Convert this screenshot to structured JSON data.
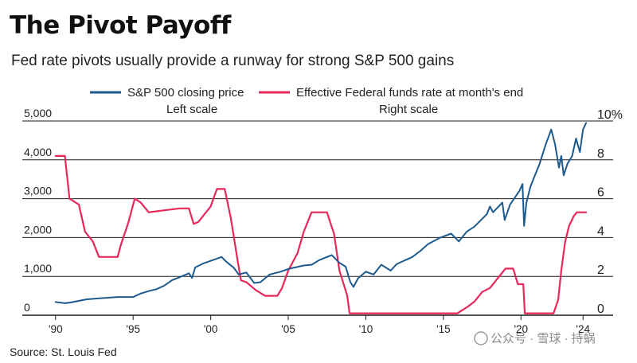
{
  "header": {
    "title": "The Pivot Payoff",
    "subtitle": "Fed rate pivots usually provide a runway for strong S&P 500 gains"
  },
  "footer": {
    "source": "Source: St. Louis Fed",
    "watermark": "公众号 · 雪球 · 持蜗"
  },
  "colors": {
    "sp500": "#1c5a8e",
    "fed_funds": "#e8275a",
    "gridline": "#1a1a1a",
    "text": "#222222"
  },
  "chart_data": {
    "type": "line",
    "title": "The Pivot Payoff",
    "subtitle": "Fed rate pivots usually provide a runway for strong S&P 500 gains",
    "x_range": [
      1989.6,
      2024.4
    ],
    "x_ticks": [
      1990,
      1995,
      2000,
      2005,
      2010,
      2015,
      2020,
      2024
    ],
    "x_tick_labels": [
      "'90",
      "'95",
      "'00",
      "'05",
      "'10",
      "'15",
      "'20",
      "'24"
    ],
    "y_left": {
      "label": "Left scale",
      "range": [
        0,
        5000
      ],
      "ticks": [
        0,
        1000,
        2000,
        3000,
        4000,
        5000
      ],
      "tick_labels": [
        "0",
        "1,000",
        "2,000",
        "3,000",
        "4,000",
        "5,000"
      ]
    },
    "y_right": {
      "label": "Right scale",
      "range": [
        0,
        10
      ],
      "ticks": [
        0,
        2,
        4,
        6,
        8,
        10
      ],
      "tick_labels": [
        "0",
        "2",
        "4",
        "6",
        "8",
        "10%"
      ]
    },
    "grid": "horizontal",
    "legend_position": "top-center",
    "series": [
      {
        "name": "S&P 500 closing price",
        "axis": "left",
        "color": "#1c5a8e",
        "points": [
          [
            1990.0,
            340
          ],
          [
            1990.6,
            310
          ],
          [
            1991.0,
            330
          ],
          [
            1992.0,
            410
          ],
          [
            1993.0,
            440
          ],
          [
            1994.0,
            470
          ],
          [
            1995.0,
            470
          ],
          [
            1995.5,
            560
          ],
          [
            1996.0,
            620
          ],
          [
            1996.5,
            670
          ],
          [
            1997.0,
            760
          ],
          [
            1997.5,
            900
          ],
          [
            1998.0,
            980
          ],
          [
            1998.6,
            1080
          ],
          [
            1998.8,
            960
          ],
          [
            1999.0,
            1230
          ],
          [
            1999.5,
            1330
          ],
          [
            2000.0,
            1400
          ],
          [
            2000.7,
            1500
          ],
          [
            2001.0,
            1380
          ],
          [
            2001.5,
            1220
          ],
          [
            2001.8,
            1050
          ],
          [
            2002.3,
            1100
          ],
          [
            2002.8,
            830
          ],
          [
            2003.2,
            850
          ],
          [
            2003.8,
            1050
          ],
          [
            2004.5,
            1120
          ],
          [
            2005.0,
            1190
          ],
          [
            2006.0,
            1280
          ],
          [
            2006.5,
            1300
          ],
          [
            2007.0,
            1420
          ],
          [
            2007.8,
            1550
          ],
          [
            2008.3,
            1350
          ],
          [
            2008.7,
            1250
          ],
          [
            2009.0,
            850
          ],
          [
            2009.2,
            730
          ],
          [
            2009.5,
            950
          ],
          [
            2010.0,
            1120
          ],
          [
            2010.5,
            1050
          ],
          [
            2011.0,
            1300
          ],
          [
            2011.6,
            1150
          ],
          [
            2012.0,
            1320
          ],
          [
            2013.0,
            1500
          ],
          [
            2013.5,
            1650
          ],
          [
            2014.0,
            1830
          ],
          [
            2014.8,
            2000
          ],
          [
            2015.5,
            2100
          ],
          [
            2016.0,
            1900
          ],
          [
            2016.5,
            2150
          ],
          [
            2017.0,
            2280
          ],
          [
            2017.8,
            2600
          ],
          [
            2018.0,
            2800
          ],
          [
            2018.2,
            2650
          ],
          [
            2018.8,
            2900
          ],
          [
            2018.95,
            2450
          ],
          [
            2019.3,
            2850
          ],
          [
            2019.9,
            3200
          ],
          [
            2020.1,
            3380
          ],
          [
            2020.2,
            2300
          ],
          [
            2020.35,
            2900
          ],
          [
            2020.6,
            3300
          ],
          [
            2020.9,
            3600
          ],
          [
            2021.2,
            3900
          ],
          [
            2021.6,
            4400
          ],
          [
            2021.95,
            4780
          ],
          [
            2022.2,
            4400
          ],
          [
            2022.45,
            3800
          ],
          [
            2022.6,
            4100
          ],
          [
            2022.75,
            3600
          ],
          [
            2023.0,
            3900
          ],
          [
            2023.3,
            4100
          ],
          [
            2023.55,
            4550
          ],
          [
            2023.8,
            4200
          ],
          [
            2024.0,
            4780
          ],
          [
            2024.2,
            4950
          ]
        ]
      },
      {
        "name": "Effective Federal funds rate at month's end",
        "axis": "right",
        "color": "#e8275a",
        "points": [
          [
            1990.0,
            8.2
          ],
          [
            1990.6,
            8.2
          ],
          [
            1990.9,
            6.0
          ],
          [
            1991.5,
            5.7
          ],
          [
            1991.9,
            4.3
          ],
          [
            1992.4,
            3.8
          ],
          [
            1992.8,
            3.0
          ],
          [
            1993.0,
            3.0
          ],
          [
            1994.0,
            3.0
          ],
          [
            1994.2,
            3.6
          ],
          [
            1994.7,
            4.8
          ],
          [
            1995.1,
            6.0
          ],
          [
            1995.5,
            5.8
          ],
          [
            1996.0,
            5.3
          ],
          [
            1997.0,
            5.4
          ],
          [
            1998.0,
            5.5
          ],
          [
            1998.6,
            5.5
          ],
          [
            1998.9,
            4.7
          ],
          [
            1999.2,
            4.8
          ],
          [
            1999.6,
            5.2
          ],
          [
            2000.0,
            5.6
          ],
          [
            2000.4,
            6.5
          ],
          [
            2000.9,
            6.5
          ],
          [
            2001.3,
            5.0
          ],
          [
            2001.7,
            3.0
          ],
          [
            2001.95,
            1.8
          ],
          [
            2002.3,
            1.7
          ],
          [
            2002.9,
            1.3
          ],
          [
            2003.5,
            1.0
          ],
          [
            2004.3,
            1.0
          ],
          [
            2004.6,
            1.4
          ],
          [
            2005.0,
            2.3
          ],
          [
            2005.6,
            3.2
          ],
          [
            2006.0,
            4.3
          ],
          [
            2006.5,
            5.3
          ],
          [
            2007.5,
            5.3
          ],
          [
            2007.7,
            4.8
          ],
          [
            2007.95,
            4.2
          ],
          [
            2008.3,
            2.3
          ],
          [
            2008.8,
            1.0
          ],
          [
            2008.95,
            0.1
          ],
          [
            2015.9,
            0.1
          ],
          [
            2016.5,
            0.4
          ],
          [
            2017.0,
            0.7
          ],
          [
            2017.5,
            1.2
          ],
          [
            2018.0,
            1.4
          ],
          [
            2018.5,
            1.9
          ],
          [
            2019.0,
            2.4
          ],
          [
            2019.5,
            2.4
          ],
          [
            2019.8,
            1.6
          ],
          [
            2020.15,
            1.6
          ],
          [
            2020.25,
            0.1
          ],
          [
            2022.1,
            0.1
          ],
          [
            2022.4,
            0.8
          ],
          [
            2022.6,
            2.3
          ],
          [
            2022.85,
            3.8
          ],
          [
            2023.1,
            4.6
          ],
          [
            2023.4,
            5.1
          ],
          [
            2023.6,
            5.3
          ],
          [
            2024.2,
            5.3
          ]
        ]
      }
    ]
  }
}
